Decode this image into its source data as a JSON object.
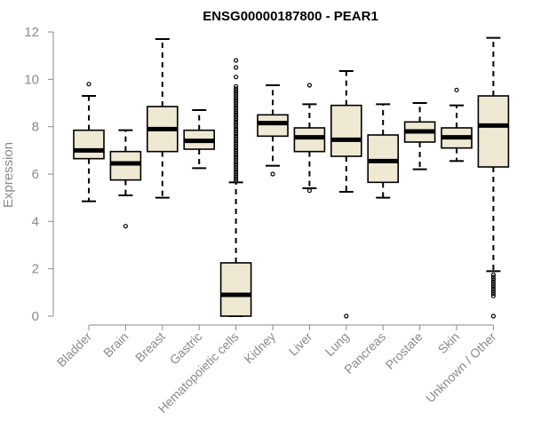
{
  "chart_data": {
    "type": "boxplot",
    "title": "ENSG00000187800 - PEAR1",
    "xlabel": "",
    "ylabel": "Expression",
    "ylim": [
      0,
      12
    ],
    "yticks": [
      0,
      2,
      4,
      6,
      8,
      10,
      12
    ],
    "box_fill": "#efe8d2",
    "categories": [
      "Bladder",
      "Brain",
      "Breast",
      "Gastric",
      "Hematopoietic cells",
      "Kidney",
      "Liver",
      "Lung",
      "Pancreas",
      "Prostate",
      "Skin",
      "Unknown / Other"
    ],
    "boxes": [
      {
        "name": "Bladder",
        "whisker_low": 4.85,
        "q1": 6.65,
        "median": 7.0,
        "q3": 7.85,
        "whisker_high": 9.3,
        "outliers": [
          9.8
        ]
      },
      {
        "name": "Brain",
        "whisker_low": 5.1,
        "q1": 5.75,
        "median": 6.45,
        "q3": 6.95,
        "whisker_high": 7.85,
        "outliers": [
          3.8
        ]
      },
      {
        "name": "Breast",
        "whisker_low": 5.0,
        "q1": 6.95,
        "median": 7.9,
        "q3": 8.85,
        "whisker_high": 11.7,
        "outliers": []
      },
      {
        "name": "Gastric",
        "whisker_low": 6.25,
        "q1": 7.05,
        "median": 7.4,
        "q3": 7.85,
        "whisker_high": 8.7,
        "outliers": []
      },
      {
        "name": "Hematopoietic cells",
        "whisker_low": 0.0,
        "q1": 0.0,
        "median": 0.9,
        "q3": 2.25,
        "whisker_high": 5.65,
        "outliers": [
          5.7,
          5.8,
          5.9,
          6.0,
          6.1,
          6.2,
          6.3,
          6.4,
          6.5,
          6.6,
          6.7,
          6.8,
          6.9,
          7.0,
          7.1,
          7.2,
          7.3,
          7.4,
          7.5,
          7.6,
          7.7,
          7.8,
          7.9,
          8.0,
          8.1,
          8.2,
          8.3,
          8.4,
          8.5,
          8.6,
          8.7,
          8.8,
          8.9,
          9.0,
          9.1,
          9.2,
          9.3,
          9.4,
          9.5,
          9.6,
          9.7,
          10.1,
          10.5,
          10.8
        ]
      },
      {
        "name": "Kidney",
        "whisker_low": 6.35,
        "q1": 7.6,
        "median": 8.15,
        "q3": 8.5,
        "whisker_high": 9.75,
        "outliers": [
          6.0
        ]
      },
      {
        "name": "Liver",
        "whisker_low": 5.4,
        "q1": 6.95,
        "median": 7.55,
        "q3": 7.95,
        "whisker_high": 8.95,
        "outliers": [
          5.3,
          9.75
        ]
      },
      {
        "name": "Lung",
        "whisker_low": 5.25,
        "q1": 6.75,
        "median": 7.45,
        "q3": 8.9,
        "whisker_high": 10.35,
        "outliers": [
          0.0
        ]
      },
      {
        "name": "Pancreas",
        "whisker_low": 5.0,
        "q1": 5.65,
        "median": 6.55,
        "q3": 7.65,
        "whisker_high": 8.95,
        "outliers": []
      },
      {
        "name": "Prostate",
        "whisker_low": 6.2,
        "q1": 7.35,
        "median": 7.8,
        "q3": 8.2,
        "whisker_high": 9.0,
        "outliers": []
      },
      {
        "name": "Skin",
        "whisker_low": 6.55,
        "q1": 7.1,
        "median": 7.55,
        "q3": 7.95,
        "whisker_high": 8.9,
        "outliers": [
          9.55
        ]
      },
      {
        "name": "Unknown / Other",
        "whisker_low": 1.9,
        "q1": 6.3,
        "median": 8.05,
        "q3": 9.3,
        "whisker_high": 11.75,
        "outliers": [
          0.0,
          0.85,
          0.95,
          1.05,
          1.15,
          1.25,
          1.35,
          1.45,
          1.55,
          1.65,
          1.75
        ]
      }
    ]
  }
}
